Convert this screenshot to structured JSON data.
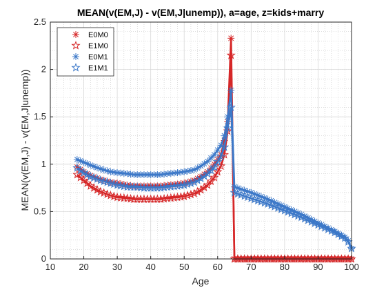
{
  "chart_data": {
    "type": "line",
    "title": "MEAN(v(EM,J) - v(EM,J|unemp)), a=age, z=kids+marry",
    "xlabel": "Age",
    "ylabel": "MEAN(v(EM,J) - v(EM,J|unemp))",
    "xlim": [
      10,
      100
    ],
    "ylim": [
      0,
      2.5
    ],
    "xticks": [
      "10",
      "20",
      "30",
      "40",
      "50",
      "60",
      "70",
      "80",
      "90",
      "100"
    ],
    "yticks": [
      "0",
      "0.5",
      "1",
      "1.5",
      "2",
      "2.5"
    ],
    "grid": "major and minor (dotted)",
    "legend_position": "top-left",
    "series": [
      {
        "name": "E0M0",
        "color": "#d62728",
        "marker": "asterisk",
        "points": [
          [
            18,
            0.97
          ],
          [
            20,
            0.92
          ],
          [
            22,
            0.88
          ],
          [
            25,
            0.84
          ],
          [
            28,
            0.81
          ],
          [
            30,
            0.8
          ],
          [
            33,
            0.78
          ],
          [
            35,
            0.77
          ],
          [
            38,
            0.77
          ],
          [
            40,
            0.77
          ],
          [
            43,
            0.77
          ],
          [
            45,
            0.78
          ],
          [
            48,
            0.79
          ],
          [
            50,
            0.8
          ],
          [
            53,
            0.83
          ],
          [
            55,
            0.87
          ],
          [
            57,
            0.92
          ],
          [
            59,
            1.0
          ],
          [
            61,
            1.1
          ],
          [
            62,
            1.25
          ],
          [
            63,
            1.45
          ],
          [
            64,
            2.33
          ],
          [
            65,
            0.0
          ],
          [
            70,
            0.0
          ],
          [
            80,
            0.0
          ],
          [
            90,
            0.0
          ],
          [
            100,
            0.0
          ]
        ]
      },
      {
        "name": "E1M0",
        "color": "#d62728",
        "marker": "star",
        "points": [
          [
            18,
            0.89
          ],
          [
            20,
            0.83
          ],
          [
            22,
            0.77
          ],
          [
            25,
            0.71
          ],
          [
            28,
            0.67
          ],
          [
            30,
            0.65
          ],
          [
            33,
            0.64
          ],
          [
            35,
            0.63
          ],
          [
            38,
            0.63
          ],
          [
            40,
            0.63
          ],
          [
            43,
            0.63
          ],
          [
            45,
            0.64
          ],
          [
            48,
            0.65
          ],
          [
            50,
            0.66
          ],
          [
            53,
            0.69
          ],
          [
            55,
            0.73
          ],
          [
            57,
            0.78
          ],
          [
            59,
            0.86
          ],
          [
            61,
            0.98
          ],
          [
            62,
            1.1
          ],
          [
            63,
            1.35
          ],
          [
            64,
            2.15
          ],
          [
            65,
            0.0
          ],
          [
            70,
            0.0
          ],
          [
            80,
            0.0
          ],
          [
            90,
            0.0
          ],
          [
            100,
            0.0
          ]
        ]
      },
      {
        "name": "E0M1",
        "color": "#3c78c8",
        "marker": "asterisk",
        "points": [
          [
            18,
            1.05
          ],
          [
            20,
            1.02
          ],
          [
            22,
            0.99
          ],
          [
            25,
            0.95
          ],
          [
            28,
            0.92
          ],
          [
            30,
            0.91
          ],
          [
            33,
            0.9
          ],
          [
            35,
            0.89
          ],
          [
            38,
            0.89
          ],
          [
            40,
            0.89
          ],
          [
            43,
            0.89
          ],
          [
            45,
            0.9
          ],
          [
            48,
            0.91
          ],
          [
            50,
            0.92
          ],
          [
            53,
            0.94
          ],
          [
            55,
            0.98
          ],
          [
            57,
            1.03
          ],
          [
            59,
            1.1
          ],
          [
            61,
            1.2
          ],
          [
            62,
            1.3
          ],
          [
            63,
            1.5
          ],
          [
            64,
            1.78
          ],
          [
            65,
            0.76
          ],
          [
            70,
            0.7
          ],
          [
            75,
            0.63
          ],
          [
            80,
            0.55
          ],
          [
            85,
            0.47
          ],
          [
            90,
            0.38
          ],
          [
            95,
            0.29
          ],
          [
            98,
            0.23
          ],
          [
            99,
            0.19
          ],
          [
            100,
            0.11
          ]
        ]
      },
      {
        "name": "E1M1",
        "color": "#3c78c8",
        "marker": "star",
        "points": [
          [
            18,
            0.96
          ],
          [
            20,
            0.91
          ],
          [
            22,
            0.87
          ],
          [
            25,
            0.83
          ],
          [
            28,
            0.8
          ],
          [
            30,
            0.78
          ],
          [
            33,
            0.76
          ],
          [
            35,
            0.76
          ],
          [
            38,
            0.75
          ],
          [
            40,
            0.75
          ],
          [
            43,
            0.75
          ],
          [
            45,
            0.76
          ],
          [
            48,
            0.77
          ],
          [
            50,
            0.78
          ],
          [
            53,
            0.81
          ],
          [
            55,
            0.85
          ],
          [
            57,
            0.9
          ],
          [
            59,
            0.97
          ],
          [
            61,
            1.08
          ],
          [
            62,
            1.18
          ],
          [
            63,
            1.38
          ],
          [
            64,
            1.6
          ],
          [
            65,
            0.7
          ],
          [
            70,
            0.64
          ],
          [
            75,
            0.58
          ],
          [
            80,
            0.51
          ],
          [
            85,
            0.44
          ],
          [
            90,
            0.36
          ],
          [
            95,
            0.28
          ],
          [
            98,
            0.22
          ],
          [
            99,
            0.18
          ],
          [
            100,
            0.11
          ]
        ]
      }
    ]
  }
}
